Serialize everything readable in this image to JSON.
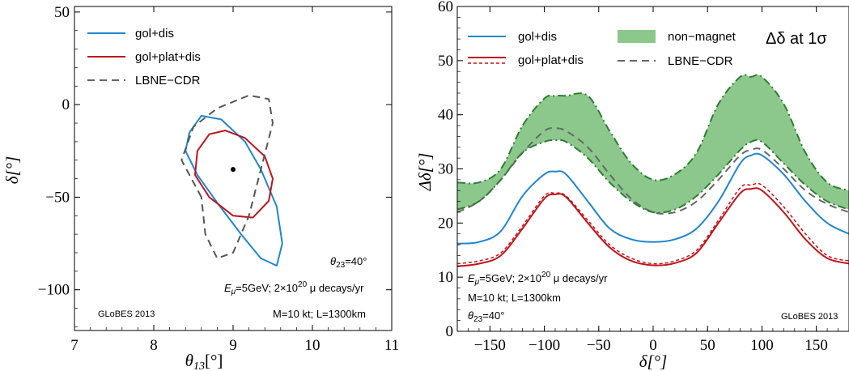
{
  "chart_data": [
    {
      "type": "line",
      "subtype": "contour",
      "xlabel": "θ13[°]",
      "ylabel": "δ[°]",
      "xlim": [
        7,
        11
      ],
      "ylim": [
        -122,
        53
      ],
      "x_ticks": [
        7,
        8,
        9,
        10,
        11
      ],
      "y_ticks": [
        50,
        0,
        -50,
        -100
      ],
      "x_tick_labels": [
        "7",
        "8",
        "9",
        "10",
        "11"
      ],
      "y_tick_labels": [
        "50",
        "0",
        "−50",
        "−100"
      ],
      "true_point": {
        "x": 9.0,
        "y": -35
      },
      "series": [
        {
          "name": "gol+dis",
          "color": "#1f86d1",
          "style": "solid",
          "points": [
            [
              8.45,
              -15
            ],
            [
              8.6,
              -6
            ],
            [
              8.85,
              -8
            ],
            [
              9.15,
              -20
            ],
            [
              9.35,
              -35
            ],
            [
              9.55,
              -55
            ],
            [
              9.62,
              -75
            ],
            [
              9.55,
              -87
            ],
            [
              9.35,
              -83
            ],
            [
              9.1,
              -70
            ],
            [
              8.8,
              -53
            ],
            [
              8.55,
              -38
            ],
            [
              8.4,
              -25
            ],
            [
              8.45,
              -15
            ]
          ]
        },
        {
          "name": "gol+plat+dis",
          "color": "#c0141a",
          "style": "solid",
          "points": [
            [
              8.55,
              -25
            ],
            [
              8.7,
              -16
            ],
            [
              8.9,
              -14
            ],
            [
              9.15,
              -18
            ],
            [
              9.4,
              -28
            ],
            [
              9.5,
              -40
            ],
            [
              9.45,
              -52
            ],
            [
              9.25,
              -61
            ],
            [
              9.0,
              -60
            ],
            [
              8.7,
              -50
            ],
            [
              8.52,
              -38
            ],
            [
              8.55,
              -25
            ]
          ]
        },
        {
          "name": "LBNE−CDR",
          "color": "#555555",
          "style": "dashed",
          "points": [
            [
              8.6,
              -50
            ],
            [
              8.35,
              -30
            ],
            [
              8.5,
              -12
            ],
            [
              8.8,
              -2
            ],
            [
              9.2,
              5
            ],
            [
              9.45,
              3
            ],
            [
              9.5,
              -10
            ],
            [
              9.35,
              -35
            ],
            [
              9.2,
              -60
            ],
            [
              9.0,
              -80
            ],
            [
              8.8,
              -83
            ],
            [
              8.65,
              -70
            ],
            [
              8.6,
              -50
            ]
          ]
        }
      ],
      "annotations": [
        "θ23=40°",
        "Eμ=5GeV; 2×10^20 μ decays/yr",
        "M=10 kt; L=1300km",
        "GLoBES 2013"
      ]
    },
    {
      "type": "line",
      "xlabel": "δ[°]",
      "ylabel": "Δδ[°]",
      "xlim": [
        -180,
        180
      ],
      "ylim": [
        0,
        60
      ],
      "x_ticks": [
        -150,
        -100,
        -50,
        0,
        50,
        100,
        150
      ],
      "y_ticks": [
        0,
        10,
        20,
        30,
        40,
        50,
        60
      ],
      "x_tick_labels": [
        "−150",
        "−100",
        "−50",
        "0",
        "50",
        "100",
        "150"
      ],
      "y_tick_labels": [
        "0",
        "10",
        "20",
        "30",
        "40",
        "50",
        "60"
      ],
      "title": "Δδ at 1σ",
      "x": [
        -180,
        -160,
        -140,
        -120,
        -100,
        -90,
        -80,
        -60,
        -40,
        -20,
        0,
        20,
        40,
        60,
        80,
        90,
        100,
        120,
        140,
        160,
        180
      ],
      "series": [
        {
          "name": "gol+dis",
          "color": "#1f86d1",
          "style": "solid",
          "values": [
            16.2,
            16.5,
            18.5,
            25,
            29,
            29.5,
            29,
            24,
            19,
            17,
            16.5,
            17,
            19,
            24,
            31,
            32.5,
            32.5,
            29,
            24,
            20,
            18
          ]
        },
        {
          "name": "gol+plat+dis",
          "color": "#c0141a",
          "style": "solid",
          "values": [
            12,
            12.5,
            14,
            19,
            24.5,
            25.3,
            24.8,
            20,
            15.5,
            13,
            12.2,
            12.6,
            14.5,
            20,
            25.5,
            26.3,
            26,
            22,
            17,
            13.5,
            12.5
          ]
        },
        {
          "name": "gol+plat+dis (dashed)",
          "color": "#c0141a",
          "style": "dashed",
          "values": [
            12.5,
            13,
            14.5,
            19.5,
            25,
            25.5,
            25,
            20.5,
            16,
            13.5,
            12.5,
            13,
            15,
            20.5,
            26.5,
            27,
            27,
            23,
            18,
            14,
            13
          ]
        },
        {
          "name": "LBNE−CDR",
          "color": "#666666",
          "style": "dashed",
          "values": [
            22,
            24,
            28,
            33,
            37,
            37.5,
            37,
            34,
            29,
            24.5,
            22,
            22,
            24,
            28,
            32.5,
            33.5,
            33.5,
            30,
            26,
            23.5,
            22
          ]
        },
        {
          "name": "non−magnet (lower)",
          "color": "#2e7d32",
          "style": "dashdot",
          "values": [
            22.5,
            24,
            28,
            33,
            35,
            35.3,
            35,
            32,
            27.5,
            24,
            22,
            22.5,
            25,
            29,
            33.5,
            35,
            35,
            31,
            27,
            24,
            22.5
          ]
        },
        {
          "name": "non−magnet (upper)",
          "color": "#2e7d32",
          "style": "dashdot",
          "values": [
            27.5,
            27.5,
            30,
            38,
            43,
            43.5,
            43.5,
            43.5,
            37,
            31,
            28,
            29,
            33,
            42,
            47,
            47,
            47,
            42,
            33,
            27.5,
            26
          ]
        }
      ],
      "band": {
        "name": "non−magnet",
        "color": "#8cc88c"
      },
      "legend": [
        "gol+dis",
        "gol+plat+dis",
        "non−magnet",
        "LBNE−CDR"
      ],
      "annotations": [
        "Eμ=5GeV; 2×10^20 μ decays/yr",
        "M=10 kt; L=1300km",
        "θ23=40°",
        "GLoBES 2013"
      ]
    }
  ],
  "labels": {
    "left_xlabel_main": "θ",
    "left_xlabel_sub": "13",
    "left_xlabel_unit": "[°]",
    "left_ylabel": "δ[°]",
    "right_xlabel": "δ[°]",
    "right_ylabel": "Δδ[°]",
    "right_title": "Δδ at 1σ",
    "leg_gol_dis": "gol+dis",
    "leg_gol_plat_dis": "gol+plat+dis",
    "leg_lbne": "LBNE−CDR",
    "leg_nonmagnet": "non−magnet",
    "theta23_main": "θ",
    "theta23_sub": "23",
    "theta23_val": "=40°",
    "beam_E": "E",
    "beam_mu_sub": "μ",
    "beam_mid": "=5GeV; 2×10",
    "beam_exp": "20",
    "beam_end": " μ decays/yr",
    "detector": "M=10 kt; L=1300km",
    "globes": "GLoBES 2013"
  }
}
